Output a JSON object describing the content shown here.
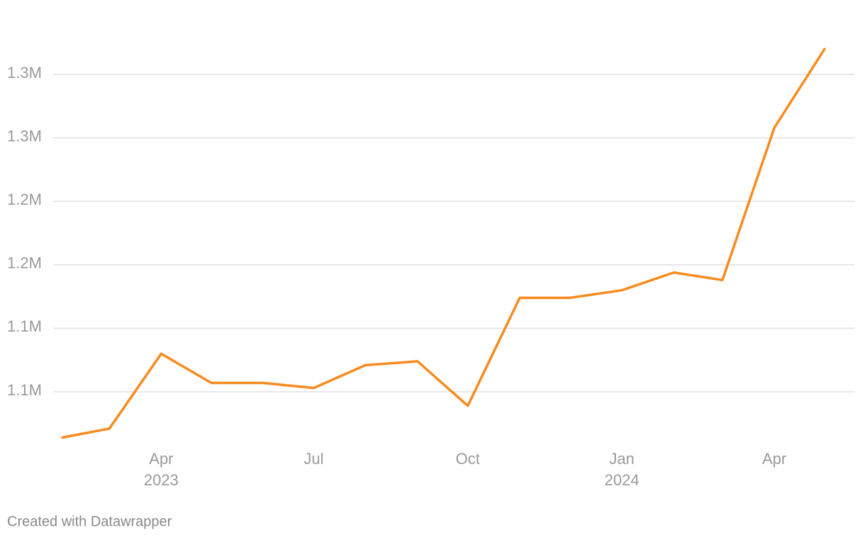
{
  "chart_data": {
    "type": "line",
    "x": [
      "2023-02",
      "2023-03",
      "2023-04",
      "2023-05",
      "2023-06",
      "2023-07",
      "2023-08",
      "2023-09",
      "2023-10",
      "2023-11",
      "2023-12",
      "2024-01",
      "2024-02",
      "2024-03",
      "2024-04",
      "2024-05"
    ],
    "series": [
      {
        "color": "#f98a1f",
        "values": [
          1014000,
          1021000,
          1080000,
          1057000,
          1057000,
          1053000,
          1071000,
          1074000,
          1039000,
          1124000,
          1124000,
          1130000,
          1144000,
          1138000,
          1258000,
          1320000
        ]
      }
    ],
    "xlim": [
      "2023-02",
      "2024-05"
    ],
    "xticks": [
      {
        "value": "2023-04",
        "label": "Apr",
        "year": "2023"
      },
      {
        "value": "2023-07",
        "label": "Jul"
      },
      {
        "value": "2023-10",
        "label": "Oct"
      },
      {
        "value": "2024-01",
        "label": "Jan",
        "year": "2024"
      },
      {
        "value": "2024-04",
        "label": "Apr"
      }
    ],
    "ylim": [
      1010000,
      1350000
    ],
    "yticks": [
      {
        "value": 1050000,
        "label": "1.1M"
      },
      {
        "value": 1100000,
        "label": "1.1M"
      },
      {
        "value": 1150000,
        "label": "1.2M"
      },
      {
        "value": 1200000,
        "label": "1.2M"
      },
      {
        "value": 1250000,
        "label": "1.3M"
      },
      {
        "value": 1300000,
        "label": "1.3M"
      }
    ],
    "grid": true,
    "footer": "Created with Datawrapper"
  }
}
